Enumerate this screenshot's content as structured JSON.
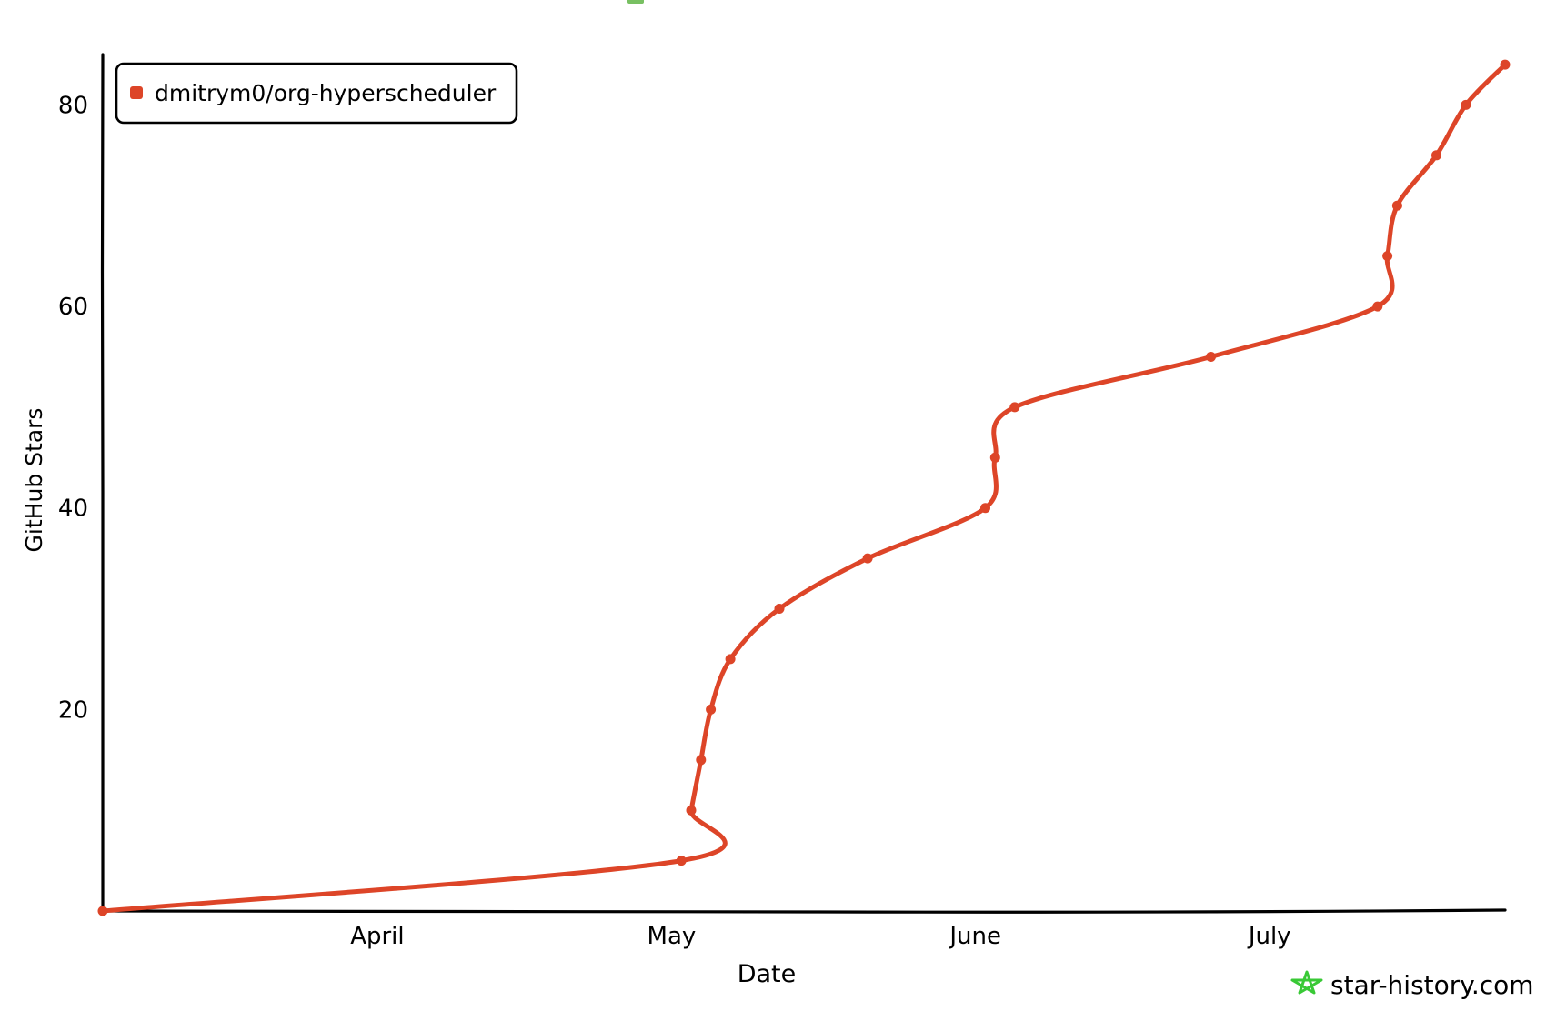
{
  "chart_data": {
    "type": "line",
    "title": "",
    "xlabel": "Date",
    "ylabel": "GitHub Stars",
    "x_ticks": [
      "April",
      "May",
      "June",
      "July"
    ],
    "y_ticks": [
      20,
      40,
      60,
      80
    ],
    "ylim": [
      0,
      85
    ],
    "xlim": [
      "2025-03-04",
      "2025-07-25"
    ],
    "grid": false,
    "legend_position": "top-left",
    "series": [
      {
        "name": "dmitrym0/org-hyperscheduler",
        "color": "#dd4528",
        "x": [
          "2025-03-04",
          "2025-05-02",
          "2025-05-03",
          "2025-05-04",
          "2025-05-05",
          "2025-05-07",
          "2025-05-12",
          "2025-05-21",
          "2025-06-02",
          "2025-06-03",
          "2025-06-05",
          "2025-06-25",
          "2025-07-12",
          "2025-07-13",
          "2025-07-14",
          "2025-07-18",
          "2025-07-21",
          "2025-07-25"
        ],
        "y": [
          0,
          5,
          10,
          15,
          20,
          25,
          30,
          35,
          40,
          45,
          50,
          55,
          60,
          65,
          70,
          75,
          80,
          84
        ],
        "markers": true
      }
    ]
  },
  "watermark": {
    "text": "star-history.com",
    "icon": "star-outline-icon",
    "color": "#39c936"
  },
  "partial_top": {
    "icon_color": "#78c062"
  }
}
